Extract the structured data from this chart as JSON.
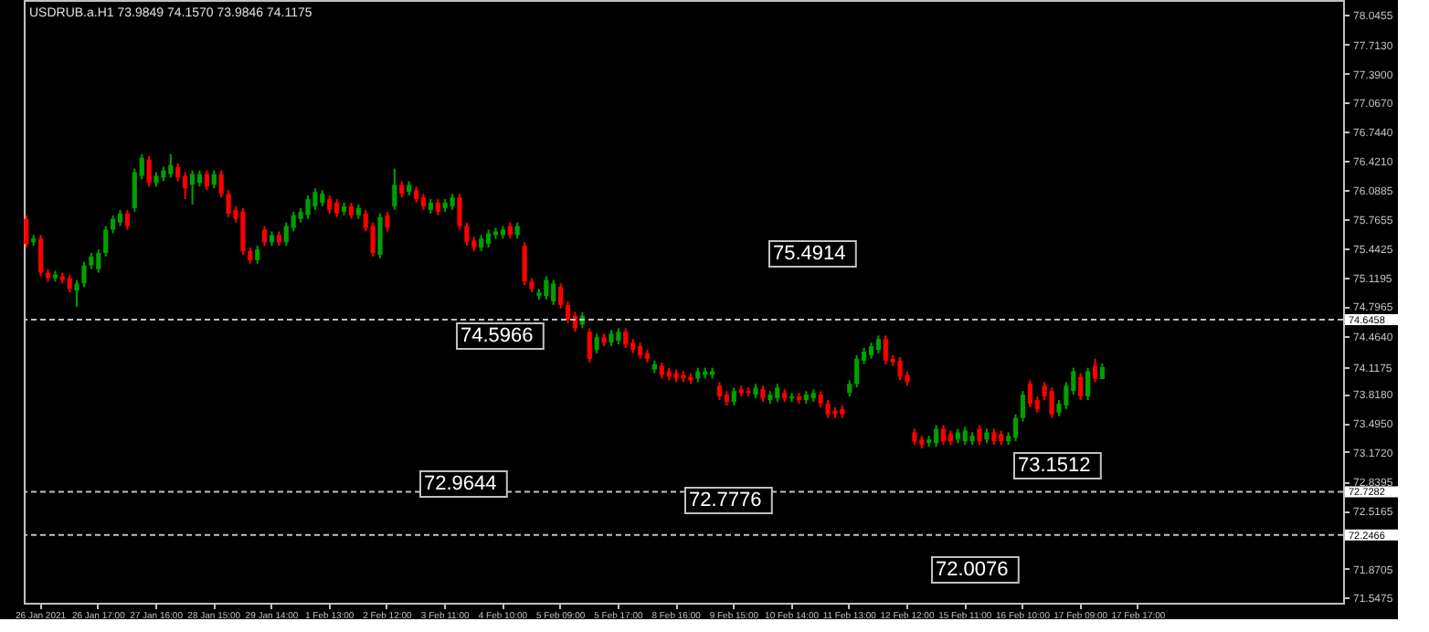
{
  "chart_data": {
    "type": "candlestick",
    "title": "USDRUB.a.H1  73.9849 74.1570 73.9846 74.1175",
    "colors": [
      "#ff0000",
      "#00a000",
      "#ff0000",
      "#ff0000",
      "#00a000",
      "#ff0000",
      "#ff0000",
      "#00a000",
      "#00a000",
      "#00a000",
      "#00a000",
      "#00a000",
      "#00a000",
      "#00a000",
      "#ff0000",
      "#00a000",
      "#00a000",
      "#ff0000",
      "#00a000",
      "#00a000",
      "#00a000",
      "#ff0000",
      "#ff0000",
      "#00a000",
      "#00a000",
      "#ff0000",
      "#00a000",
      "#ff0000",
      "#ff0000",
      "#ff0000",
      "#ff0000",
      "#ff0000",
      "#00a000",
      "#ff0000",
      "#00a000",
      "#ff0000",
      "#00a000",
      "#00a000",
      "#00a000",
      "#00a000",
      "#00a000",
      "#00a000",
      "#ff0000",
      "#ff0000",
      "#00a000",
      "#ff0000",
      "#00a000",
      "#ff0000",
      "#ff0000",
      "#00a000",
      "#ff0000",
      "#00a000",
      "#ff0000",
      "#00a000",
      "#ff0000",
      "#ff0000",
      "#00a000",
      "#ff0000",
      "#00a000",
      "#00a000",
      "#ff0000",
      "#ff0000",
      "#ff0000",
      "#00a000",
      "#00a000",
      "#00a000",
      "#00a000",
      "#ff0000",
      "#00a000",
      "#ff0000",
      "#ff0000",
      "#00a000",
      "#00a000",
      "#00a000",
      "#ff0000",
      "#ff0000",
      "#ff0000",
      "#00a000",
      "#ff0000",
      "#00a000",
      "#ff0000",
      "#00a000",
      "#00a000",
      "#ff0000",
      "#ff0000",
      "#ff0000",
      "#ff0000",
      "#00a000",
      "#ff0000",
      "#ff0000",
      "#ff0000",
      "#ff0000",
      "#ff0000",
      "#00a000",
      "#00a000",
      "#00a000",
      "#ff0000",
      "#ff0000",
      "#00a000",
      "#ff0000",
      "#ff0000",
      "#00a000",
      "#ff0000",
      "#00a000",
      "#00a000",
      "#ff0000",
      "#00a000",
      "#ff0000",
      "#00a000",
      "#00a000",
      "#ff0000",
      "#ff0000",
      "#ff0000",
      "#ff0000",
      "#00a000",
      "#00a000",
      "#00a000",
      "#00a000",
      "#00a000",
      "#ff0000",
      "#ff0000",
      "#ff0000",
      "#ff0000",
      "#ff0000",
      "#ff0000",
      "#00a000",
      "#00a000",
      "#ff0000",
      "#ff0000",
      "#00a000",
      "#00a000",
      "#00a000",
      "#ff0000",
      "#00a000",
      "#ff0000",
      "#ff0000",
      "#00a000",
      "#00a000",
      "#00a000",
      "#ff0000",
      "#ff0000",
      "#ff0000",
      "#ff0000",
      "#00a000",
      "#00a000",
      "#00a000",
      "#ff0000",
      "#00a000",
      "#ff0000",
      "#00a000",
      null,
      null,
      null,
      null,
      null,
      null,
      null,
      null,
      null,
      null,
      null,
      null,
      null,
      null,
      null,
      null,
      null,
      null,
      null,
      null,
      null,
      null,
      null,
      null,
      null,
      null,
      null,
      null,
      null,
      null,
      null,
      null,
      null
    ],
    "categories": [
      null,
      null,
      "26 Jan 2021",
      null,
      null,
      null,
      null,
      null,
      null,
      null,
      "26 Jan 17:00",
      null,
      null,
      null,
      null,
      null,
      null,
      null,
      "27 Jan 16:00",
      null,
      null,
      null,
      null,
      null,
      null,
      null,
      "28 Jan 15:00",
      null,
      null,
      null,
      null,
      null,
      null,
      null,
      "29 Jan 14:00",
      null,
      null,
      null,
      null,
      null,
      null,
      null,
      "1 Feb 13:00",
      null,
      null,
      null,
      null,
      null,
      null,
      null,
      "2 Feb 12:00",
      null,
      null,
      null,
      null,
      null,
      null,
      null,
      "3 Feb 11:00",
      null,
      null,
      null,
      null,
      null,
      null,
      null,
      "4 Feb 10:00",
      null,
      null,
      null,
      null,
      null,
      null,
      null,
      "5 Feb 09:00",
      null,
      null,
      null,
      null,
      null,
      null,
      null,
      "5 Feb 17:00",
      null,
      null,
      null,
      null,
      null,
      null,
      null,
      "8 Feb 16:00",
      null,
      null,
      null,
      null,
      null,
      null,
      null,
      "9 Feb 15:00",
      null,
      null,
      null,
      null,
      null,
      null,
      null,
      "10 Feb 14:00",
      null,
      null,
      null,
      null,
      null,
      null,
      null,
      "11 Feb 13:00",
      null,
      null,
      null,
      null,
      null,
      null,
      null,
      "12 Feb 12:00",
      null,
      null,
      null,
      null,
      null,
      null,
      null,
      "15 Feb 11:00",
      null,
      null,
      null,
      null,
      null,
      null,
      null,
      "16 Feb 10:00",
      null,
      null,
      null,
      null,
      null,
      null,
      null,
      "17 Feb 09:00",
      null,
      null,
      null,
      null,
      null,
      null,
      null,
      "17 Feb 17:00",
      null,
      null,
      null,
      null,
      null,
      null,
      null,
      null,
      null,
      null,
      null,
      null,
      null,
      null,
      null,
      null,
      null,
      null,
      null,
      null,
      null,
      null,
      null,
      null,
      null,
      null,
      null,
      null
    ],
    "ohlc": [
      [
        75.77,
        75.81,
        75.45,
        75.49
      ],
      [
        75.51,
        75.59,
        75.47,
        75.55
      ],
      [
        75.55,
        75.59,
        75.13,
        75.17
      ],
      [
        75.17,
        75.21,
        75.07,
        75.11
      ],
      [
        75.11,
        75.19,
        75.07,
        75.15
      ],
      [
        75.13,
        75.17,
        75.05,
        75.09
      ],
      [
        75.11,
        75.15,
        74.95,
        74.99
      ],
      [
        74.97,
        75.09,
        74.79,
        75.05
      ],
      [
        75.05,
        75.29,
        75.01,
        75.25
      ],
      [
        75.25,
        75.39,
        75.21,
        75.35
      ],
      [
        75.21,
        75.43,
        75.17,
        75.39
      ],
      [
        75.39,
        75.69,
        75.35,
        75.65
      ],
      [
        75.65,
        75.81,
        75.61,
        75.77
      ],
      [
        75.73,
        75.87,
        75.69,
        75.83
      ],
      [
        75.83,
        75.87,
        75.65,
        75.69
      ],
      [
        75.89,
        76.33,
        75.85,
        76.29
      ],
      [
        76.25,
        76.49,
        76.21,
        76.45
      ],
      [
        76.43,
        76.47,
        76.13,
        76.17
      ],
      [
        76.17,
        76.29,
        76.13,
        76.25
      ],
      [
        76.23,
        76.35,
        76.19,
        76.31
      ],
      [
        76.27,
        76.49,
        76.23,
        76.37
      ],
      [
        76.35,
        76.39,
        76.19,
        76.23
      ],
      [
        76.25,
        76.29,
        75.99,
        76.11
      ],
      [
        76.15,
        76.31,
        75.93,
        76.27
      ],
      [
        76.17,
        76.31,
        76.13,
        76.27
      ],
      [
        76.27,
        76.31,
        76.09,
        76.13
      ],
      [
        76.15,
        76.31,
        76.11,
        76.27
      ],
      [
        76.27,
        76.31,
        76.01,
        76.05
      ],
      [
        76.05,
        76.09,
        75.79,
        75.83
      ],
      [
        75.87,
        75.91,
        75.73,
        75.77
      ],
      [
        75.85,
        75.89,
        75.37,
        75.41
      ],
      [
        75.41,
        75.45,
        75.27,
        75.31
      ],
      [
        75.31,
        75.47,
        75.27,
        75.43
      ],
      [
        75.65,
        75.69,
        75.47,
        75.51
      ],
      [
        75.51,
        75.63,
        75.47,
        75.59
      ],
      [
        75.59,
        75.63,
        75.47,
        75.51
      ],
      [
        75.51,
        75.73,
        75.47,
        75.69
      ],
      [
        75.67,
        75.85,
        75.63,
        75.81
      ],
      [
        75.77,
        75.89,
        75.73,
        75.85
      ],
      [
        75.81,
        76.03,
        75.77,
        75.99
      ],
      [
        75.91,
        76.11,
        75.87,
        76.07
      ],
      [
        75.95,
        76.09,
        75.91,
        76.05
      ],
      [
        75.99,
        76.03,
        75.83,
        75.87
      ],
      [
        75.95,
        75.99,
        75.79,
        75.83
      ],
      [
        75.85,
        75.95,
        75.81,
        75.91
      ],
      [
        75.91,
        75.95,
        75.77,
        75.81
      ],
      [
        75.81,
        75.93,
        75.77,
        75.89
      ],
      [
        75.83,
        75.87,
        75.63,
        75.67
      ],
      [
        75.69,
        75.73,
        75.35,
        75.39
      ],
      [
        75.37,
        75.83,
        75.33,
        75.79
      ],
      [
        75.81,
        75.85,
        75.63,
        75.67
      ],
      [
        75.91,
        76.33,
        75.87,
        76.15
      ],
      [
        76.15,
        76.19,
        76.01,
        76.05
      ],
      [
        76.07,
        76.19,
        76.03,
        76.15
      ],
      [
        76.09,
        76.13,
        75.95,
        75.99
      ],
      [
        76.01,
        76.05,
        75.87,
        75.91
      ],
      [
        75.87,
        75.99,
        75.83,
        75.95
      ],
      [
        75.95,
        75.99,
        75.81,
        75.85
      ],
      [
        75.89,
        75.99,
        75.85,
        75.95
      ],
      [
        75.91,
        76.05,
        75.87,
        76.01
      ],
      [
        76.01,
        76.05,
        75.65,
        75.69
      ],
      [
        75.69,
        75.73,
        75.47,
        75.51
      ],
      [
        75.53,
        75.57,
        75.41,
        75.45
      ],
      [
        75.45,
        75.59,
        75.41,
        75.55
      ],
      [
        75.49,
        75.65,
        75.45,
        75.61
      ],
      [
        75.59,
        75.67,
        75.55,
        75.63
      ],
      [
        75.59,
        75.69,
        75.55,
        75.65
      ],
      [
        75.69,
        75.73,
        75.55,
        75.59
      ],
      [
        75.59,
        75.73,
        75.55,
        75.69
      ],
      [
        75.47,
        75.51,
        75.03,
        75.07
      ],
      [
        75.07,
        75.11,
        74.95,
        74.99
      ],
      [
        74.91,
        74.99,
        74.87,
        74.95
      ],
      [
        74.91,
        75.13,
        74.87,
        75.09
      ],
      [
        74.85,
        75.09,
        74.81,
        75.05
      ],
      [
        75.01,
        75.05,
        74.77,
        74.81
      ],
      [
        74.81,
        74.85,
        74.61,
        74.65
      ],
      [
        74.69,
        74.73,
        74.51,
        74.55
      ],
      [
        74.59,
        74.73,
        74.55,
        74.69
      ],
      [
        74.51,
        74.55,
        74.17,
        74.21
      ],
      [
        74.31,
        74.49,
        74.27,
        74.45
      ],
      [
        74.45,
        74.49,
        74.35,
        74.39
      ],
      [
        74.39,
        74.53,
        74.35,
        74.49
      ],
      [
        74.41,
        74.55,
        74.37,
        74.51
      ],
      [
        74.51,
        74.55,
        74.33,
        74.37
      ],
      [
        74.39,
        74.43,
        74.27,
        74.31
      ],
      [
        74.35,
        74.39,
        74.21,
        74.25
      ],
      [
        74.27,
        74.31,
        74.17,
        74.21
      ],
      [
        74.09,
        74.19,
        74.05,
        74.15
      ],
      [
        74.13,
        74.17,
        73.99,
        74.03
      ],
      [
        74.07,
        74.11,
        73.97,
        74.01
      ],
      [
        74.05,
        74.09,
        73.95,
        73.99
      ],
      [
        74.03,
        74.07,
        73.95,
        73.99
      ],
      [
        74.01,
        74.05,
        73.93,
        73.97
      ],
      [
        73.99,
        74.11,
        73.95,
        74.07
      ],
      [
        74.03,
        74.11,
        73.99,
        74.07
      ],
      [
        74.03,
        74.11,
        73.99,
        74.07
      ],
      [
        73.91,
        73.95,
        73.75,
        73.79
      ],
      [
        73.81,
        73.85,
        73.69,
        73.73
      ],
      [
        73.73,
        73.89,
        73.69,
        73.85
      ],
      [
        73.87,
        73.91,
        73.79,
        73.83
      ],
      [
        73.85,
        73.89,
        73.79,
        73.83
      ],
      [
        73.81,
        73.93,
        73.77,
        73.89
      ],
      [
        73.87,
        73.91,
        73.73,
        73.77
      ],
      [
        73.75,
        73.85,
        73.71,
        73.81
      ],
      [
        73.77,
        73.93,
        73.73,
        73.89
      ],
      [
        73.83,
        73.87,
        73.73,
        73.77
      ],
      [
        73.77,
        73.83,
        73.73,
        73.79
      ],
      [
        73.79,
        73.83,
        73.71,
        73.75
      ],
      [
        73.75,
        73.85,
        73.71,
        73.81
      ],
      [
        73.77,
        73.87,
        73.73,
        73.83
      ],
      [
        73.81,
        73.85,
        73.67,
        73.71
      ],
      [
        73.71,
        73.75,
        73.55,
        73.59
      ],
      [
        73.63,
        73.67,
        73.55,
        73.59
      ],
      [
        73.65,
        73.69,
        73.55,
        73.59
      ],
      [
        73.83,
        73.97,
        73.79,
        73.93
      ],
      [
        73.93,
        74.25,
        73.89,
        74.21
      ],
      [
        74.19,
        74.33,
        74.15,
        74.29
      ],
      [
        74.25,
        74.39,
        74.21,
        74.35
      ],
      [
        74.31,
        74.47,
        74.27,
        74.43
      ],
      [
        74.43,
        74.47,
        74.15,
        74.19
      ],
      [
        74.21,
        74.25,
        74.13,
        74.17
      ],
      [
        74.19,
        74.23,
        73.97,
        74.01
      ],
      [
        74.03,
        74.07,
        73.91,
        73.95
      ],
      [
        73.39,
        73.43,
        73.25,
        73.29
      ],
      [
        73.31,
        73.35,
        73.21,
        73.25
      ],
      [
        73.27,
        73.35,
        73.23,
        73.31
      ],
      [
        73.27,
        73.47,
        73.23,
        73.43
      ],
      [
        73.43,
        73.47,
        73.25,
        73.29
      ],
      [
        73.37,
        73.41,
        73.25,
        73.29
      ],
      [
        73.31,
        73.43,
        73.27,
        73.39
      ],
      [
        73.29,
        73.45,
        73.25,
        73.41
      ],
      [
        73.29,
        73.39,
        73.25,
        73.35
      ],
      [
        73.43,
        73.47,
        73.25,
        73.29
      ],
      [
        73.31,
        73.43,
        73.27,
        73.39
      ],
      [
        73.39,
        73.43,
        73.25,
        73.29
      ],
      [
        73.37,
        73.41,
        73.25,
        73.29
      ],
      [
        73.29,
        73.39,
        73.25,
        73.35
      ],
      [
        73.33,
        73.59,
        73.29,
        73.55
      ],
      [
        73.55,
        73.85,
        73.51,
        73.81
      ],
      [
        73.93,
        73.97,
        73.67,
        73.71
      ],
      [
        73.75,
        73.79,
        73.61,
        73.65
      ],
      [
        73.91,
        73.95,
        73.75,
        73.79
      ],
      [
        73.85,
        73.89,
        73.55,
        73.59
      ],
      [
        73.61,
        73.75,
        73.57,
        73.71
      ],
      [
        73.69,
        73.95,
        73.65,
        73.91
      ],
      [
        73.85,
        74.11,
        73.81,
        74.07
      ],
      [
        74.01,
        74.05,
        73.75,
        73.79
      ],
      [
        73.79,
        74.11,
        73.75,
        74.07
      ],
      [
        74.13,
        74.21,
        73.95,
        73.99
      ],
      [
        73.9849,
        74.157,
        73.9846,
        74.1175
      ],
      null,
      null,
      null,
      null,
      null,
      null,
      null,
      null,
      null,
      null,
      null,
      null,
      null,
      null,
      null,
      null,
      null,
      null,
      null,
      null,
      null,
      null,
      null,
      null,
      null,
      null,
      null,
      null,
      null,
      null,
      null,
      null,
      null
    ],
    "ylim": [
      71.49,
      78.21
    ],
    "yticks": [
      78.0455,
      {
        "value": 77.713,
        "label": "77.7130"
      },
      {
        "value": 77.39,
        "label": "77.3900"
      },
      {
        "value": 77.067,
        "label": "77.0670"
      },
      {
        "value": 76.744,
        "label": "76.7440"
      },
      {
        "value": 76.421,
        "label": "76.4210"
      },
      76.0885,
      75.7655,
      75.4425,
      75.1195,
      74.7965,
      {
        "value": 74.464,
        "label": "74.4640"
      },
      74.1175,
      {
        "value": 73.818,
        "label": "73.8180"
      },
      {
        "value": 73.495,
        "label": "73.4950"
      },
      {
        "value": 73.172,
        "label": "73.1720"
      },
      72.8395,
      72.5165,
      71.8705,
      71.5475
    ],
    "ref_lines": [
      {
        "axis": "y",
        "value": 74.6458,
        "label": "74.6458",
        "color": "#c0c0c0",
        "line_style": "dashed"
      },
      {
        "axis": "y",
        "value": 72.7282,
        "label": "72.7282",
        "color": "#c0c0c0",
        "line_style": "dashed"
      },
      {
        "axis": "y",
        "value": 72.2466,
        "label": "72.2466",
        "color": "#c0c0c0",
        "line_style": "dashed"
      }
    ],
    "annotations": [
      "72.9644",
      "74.5966",
      "72.7776",
      "75.4914",
      "72.0076",
      "73.1512"
    ],
    "grid": false
  }
}
